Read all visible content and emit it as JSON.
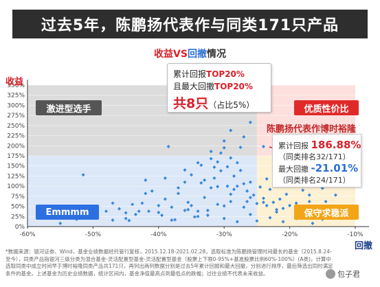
{
  "header": {
    "title": "过去5年，陈鹏扬代表作与同类171只产品"
  },
  "subtitle": {
    "part1": "收益",
    "part2": "VS",
    "part3": "回撤",
    "part4": "情况"
  },
  "axes": {
    "ylabel": "收益",
    "xlabel": "回撤"
  },
  "callout": {
    "line1_prefix": "累计回报",
    "line1_hl": "TOP20%",
    "line2_prefix": "且最大回撤",
    "line2_hl": "TOP20%",
    "line3_big": "共8只",
    "line3_small": "（占比5%）"
  },
  "quadrants": {
    "aggressive": "激进型选手",
    "quality": "优质性价比",
    "emmmm": "Emmmm",
    "conservative": "保守求稳派"
  },
  "fund": {
    "title": "陈鹏扬代表作博时裕隆",
    "return_label": "累计回报",
    "return_value": "186.88%",
    "return_rank": "（同类排名32/171）",
    "drawdown_label": "最大回撤",
    "drawdown_value": "-21.01%",
    "drawdown_rank": "（同类排名24/171）"
  },
  "note": "*数据来源：银河证券、Wind，基金业绩数据经托管行复核，2015.12.18-2021.02.28，选取标准为陈鹏扬管理时间最长的基金（2015.8.24-至今），同类产品指银河三级分类为混合基金-灵活配置型基金-灵活配置型基金（股票上下限0-95%+基准股票比例60%-100%）(A类)，计算中选取同类中成立时间早于博时裕隆同类产品共171只，再列出两列数据分别是过去5年累计回报和最大回撤，分别进行排序，最后筛选出同时满足条件的基金。上述基金为历史业绩数据，统计区间内，基金净值最高点到最低点的跌幅；过往业绩不代表未来收益。",
  "watermark": "包子君",
  "colors": {
    "title_bg": "#2e2e2e",
    "return_red": "#d8202a",
    "drawdown_blue": "#2a6fd1",
    "aggressive_bg": "#dcdcdc",
    "quality_bg": "#fde0de",
    "emmmm_bg": "#dce8f8",
    "conservative_bg": "#fdf1d4",
    "point_color": "#3a87d9"
  },
  "chart_data": {
    "type": "scatter",
    "title": "",
    "xlabel": "回撤",
    "ylabel": "收益",
    "xlim": [
      -60,
      -10
    ],
    "ylim": [
      0,
      350
    ],
    "x_ticks": [
      "-60%",
      "-50%",
      "-40%",
      "-30%",
      "-20%",
      "-10%"
    ],
    "x_tick_values": [
      -60,
      -50,
      -40,
      -30,
      -20,
      -10
    ],
    "y_ticks": [
      "0%",
      "25%",
      "50%",
      "75%",
      "100%",
      "125%",
      "150%",
      "175%",
      "200%",
      "225%",
      "250%",
      "275%",
      "300%",
      "325%",
      "350%"
    ],
    "y_tick_values": [
      0,
      25,
      50,
      75,
      100,
      125,
      150,
      175,
      200,
      225,
      250,
      275,
      300,
      325,
      350
    ],
    "quadrant_split": {
      "x": -25,
      "y": 175
    },
    "highlight_point": {
      "x": -21.01,
      "y": 186.88,
      "label": "陈鹏扬代表作博时裕隆"
    },
    "points": [
      [
        -57,
        33
      ],
      [
        -56.5,
        27
      ],
      [
        -55,
        8
      ],
      [
        -53,
        40
      ],
      [
        -52.5,
        18
      ],
      [
        -51.5,
        128
      ],
      [
        -50,
        33
      ],
      [
        -49.5,
        22
      ],
      [
        -48,
        38
      ],
      [
        -47,
        58
      ],
      [
        -46,
        44
      ],
      [
        -45,
        34
      ],
      [
        -44.5,
        15
      ],
      [
        -44,
        55
      ],
      [
        -43.5,
        30
      ],
      [
        -42.5,
        58
      ],
      [
        -42,
        115
      ],
      [
        -41.5,
        38
      ],
      [
        -41,
        88
      ],
      [
        -40,
        52
      ],
      [
        -39.5,
        28
      ],
      [
        -39,
        68
      ],
      [
        -38.5,
        198
      ],
      [
        -38,
        48
      ],
      [
        -37.5,
        17
      ],
      [
        -37,
        96
      ],
      [
        -36,
        40
      ],
      [
        -36,
        110
      ],
      [
        -35.5,
        42
      ],
      [
        -35.5,
        60
      ],
      [
        -35,
        128
      ],
      [
        -34.5,
        24
      ],
      [
        -34,
        25
      ],
      [
        -34,
        38
      ],
      [
        -33.5,
        108
      ],
      [
        -33.5,
        152
      ],
      [
        -33,
        72
      ],
      [
        -33,
        115
      ],
      [
        -32.5,
        40
      ],
      [
        -32.5,
        28
      ],
      [
        -32,
        96
      ],
      [
        -32,
        168
      ],
      [
        -31.5,
        147
      ],
      [
        -31.5,
        120
      ],
      [
        -31,
        160
      ],
      [
        -31,
        99
      ],
      [
        -30.5,
        138
      ],
      [
        -30.5,
        182
      ],
      [
        -30,
        51
      ],
      [
        -30,
        195
      ],
      [
        -29.5,
        148
      ],
      [
        -29.5,
        100
      ],
      [
        -29,
        170
      ],
      [
        -29,
        80
      ],
      [
        -28.5,
        125
      ],
      [
        -28.5,
        92
      ],
      [
        -28,
        158
      ],
      [
        -28,
        100
      ],
      [
        -27.5,
        196
      ],
      [
        -27.5,
        139
      ],
      [
        -27,
        106
      ],
      [
        -27,
        48
      ],
      [
        -26.5,
        88
      ],
      [
        -26.5,
        62
      ],
      [
        -26,
        110
      ],
      [
        -26,
        30
      ],
      [
        -25.5,
        78
      ],
      [
        -25,
        57
      ],
      [
        -24.5,
        98
      ],
      [
        -24,
        70
      ],
      [
        -23.5,
        52
      ],
      [
        -23.5,
        118
      ],
      [
        -23,
        92
      ],
      [
        -22.5,
        60
      ],
      [
        -22,
        115
      ],
      [
        -22,
        36
      ],
      [
        -21.5,
        148
      ],
      [
        -21.5,
        68
      ],
      [
        -21,
        45
      ],
      [
        -20.5,
        80
      ],
      [
        -20,
        130
      ],
      [
        -19.5,
        102
      ],
      [
        -19,
        58
      ],
      [
        -18.5,
        118
      ],
      [
        -18,
        90
      ],
      [
        -17.5,
        26
      ],
      [
        -17,
        78
      ],
      [
        -16.5,
        112
      ],
      [
        -16,
        48
      ],
      [
        -15.5,
        140
      ],
      [
        -15,
        95
      ],
      [
        -14.5,
        62
      ],
      [
        -14,
        122
      ],
      [
        -13,
        78
      ],
      [
        -12.5,
        35
      ],
      [
        -12,
        105
      ],
      [
        -47,
        16
      ],
      [
        -45,
        20
      ],
      [
        -43,
        38
      ],
      [
        -40,
        35
      ],
      [
        -38,
        16
      ],
      [
        -37,
        82
      ],
      [
        -35,
        52
      ],
      [
        -31,
        55
      ],
      [
        -29,
        62
      ],
      [
        -26,
        72
      ],
      [
        -24,
        60
      ],
      [
        -22,
        42
      ],
      [
        -20,
        52
      ],
      [
        -18,
        40
      ],
      [
        -17,
        62
      ],
      [
        -15,
        18
      ],
      [
        -13.5,
        45
      ],
      [
        -30,
        20
      ],
      [
        -28,
        12
      ],
      [
        -25,
        14
      ],
      [
        -23,
        22
      ],
      [
        -21,
        12
      ],
      [
        -19,
        20
      ],
      [
        -16.5,
        8
      ],
      [
        -42,
        82
      ],
      [
        -39,
        120
      ],
      [
        -36,
        140
      ],
      [
        -34,
        158
      ],
      [
        -32,
        186
      ],
      [
        -30,
        212
      ],
      [
        -29,
        238
      ],
      [
        -27,
        222
      ],
      [
        -26,
        258
      ],
      [
        -24,
        198
      ],
      [
        -19.5,
        165
      ],
      [
        -18.5,
        182
      ],
      [
        -17.5,
        198
      ],
      [
        -16,
        170
      ],
      [
        -14,
        188
      ],
      [
        -13,
        158
      ],
      [
        -12,
        140
      ],
      [
        -11.5,
        120
      ]
    ]
  }
}
